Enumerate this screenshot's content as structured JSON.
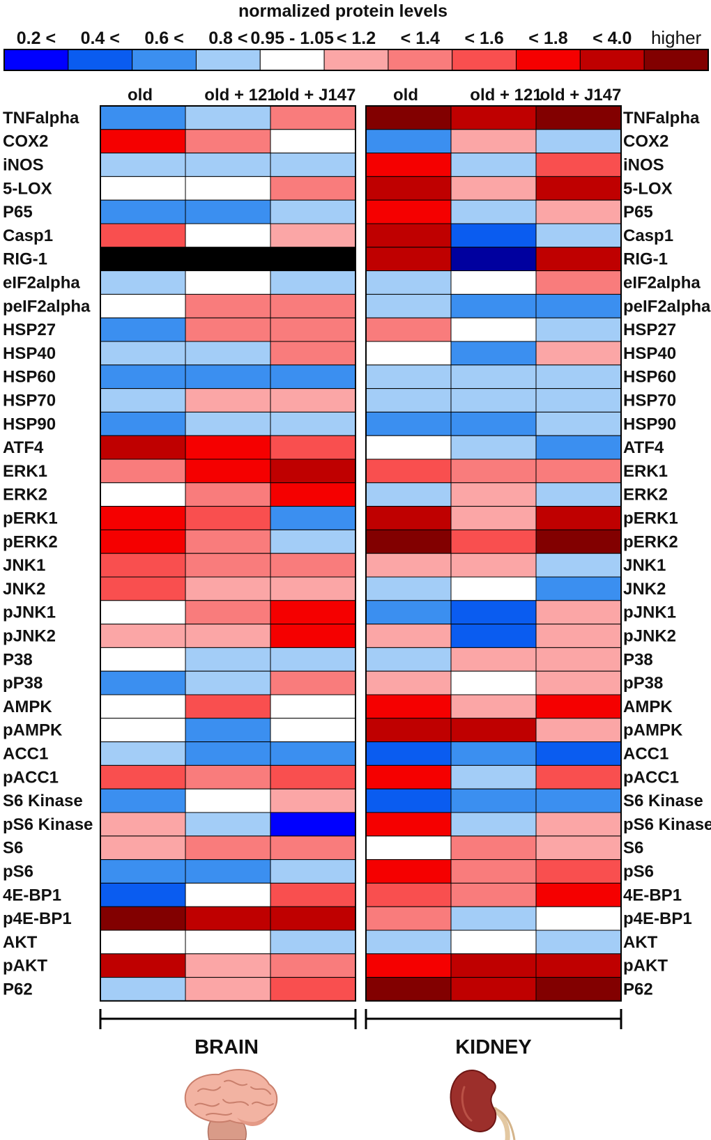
{
  "chart_data": {
    "type": "heatmap",
    "title": "normalized protein levels",
    "legend": {
      "labels": [
        "0.2 <",
        "0.4 <",
        "0.6 <",
        "0.8 <",
        "0.95 - 1.05",
        "< 1.2",
        "< 1.4",
        "< 1.6",
        "< 1.8",
        "< 4.0",
        "higher"
      ],
      "bins": [
        "b1",
        "b2",
        "b3",
        "b4",
        "w",
        "r1",
        "r2",
        "r3",
        "r4",
        "r5",
        "r6"
      ],
      "colors": {
        "b1": "#0000ff",
        "b2": "#0a5cf0",
        "b3": "#3b8ff0",
        "b4": "#a3cdf7",
        "w": "#ffffff",
        "r1": "#fba6a6",
        "r2": "#f97c7c",
        "r3": "#f94f4f",
        "r4": "#f50000",
        "r5": "#bf0000",
        "r6": "#820000",
        "na": "#000000",
        "blue_dark": "#00009f"
      }
    },
    "columns": [
      "old",
      "old + 121",
      "old + J147"
    ],
    "tissues": [
      "BRAIN",
      "KIDNEY"
    ],
    "proteins": [
      "TNFalpha",
      "COX2",
      "iNOS",
      "5-LOX",
      "P65",
      "Casp1",
      "RIG-1",
      "eIF2alpha",
      "peIF2alpha",
      "HSP27",
      "HSP40",
      "HSP60",
      "HSP70",
      "HSP90",
      "ATF4",
      "ERK1",
      "ERK2",
      "pERK1",
      "pERK2",
      "JNK1",
      "JNK2",
      "pJNK1",
      "pJNK2",
      "P38",
      "pP38",
      "AMPK",
      "pAMPK",
      "ACC1",
      "pACC1",
      "S6 Kinase",
      "pS6 Kinase",
      "S6",
      "pS6",
      "4E-BP1",
      "p4E-BP1",
      "AKT",
      "pAKT",
      "P62"
    ],
    "brain": [
      [
        "b3",
        "b4",
        "r2"
      ],
      [
        "r4",
        "r2",
        "w"
      ],
      [
        "b4",
        "b4",
        "b4"
      ],
      [
        "w",
        "w",
        "r2"
      ],
      [
        "b3",
        "b3",
        "b4"
      ],
      [
        "r3",
        "w",
        "r1"
      ],
      [
        "na",
        "na",
        "na"
      ],
      [
        "b4",
        "w",
        "b4"
      ],
      [
        "w",
        "r2",
        "r2"
      ],
      [
        "b3",
        "r2",
        "r2"
      ],
      [
        "b4",
        "b4",
        "r2"
      ],
      [
        "b3",
        "b3",
        "b3"
      ],
      [
        "b4",
        "r1",
        "r1"
      ],
      [
        "b3",
        "b4",
        "b4"
      ],
      [
        "r5",
        "r4",
        "r3"
      ],
      [
        "r2",
        "r4",
        "r5"
      ],
      [
        "w",
        "r2",
        "r4"
      ],
      [
        "r4",
        "r3",
        "b3"
      ],
      [
        "r4",
        "r2",
        "b4"
      ],
      [
        "r3",
        "r2",
        "r2"
      ],
      [
        "r3",
        "r1",
        "r1"
      ],
      [
        "w",
        "r2",
        "r4"
      ],
      [
        "r1",
        "r1",
        "r4"
      ],
      [
        "w",
        "b4",
        "b4"
      ],
      [
        "b3",
        "b4",
        "r2"
      ],
      [
        "w",
        "r3",
        "w"
      ],
      [
        "w",
        "b3",
        "w"
      ],
      [
        "b4",
        "b3",
        "b3"
      ],
      [
        "r3",
        "r2",
        "r3"
      ],
      [
        "b3",
        "w",
        "r1"
      ],
      [
        "r1",
        "b4",
        "b1"
      ],
      [
        "r1",
        "r2",
        "r2"
      ],
      [
        "b3",
        "b3",
        "b4"
      ],
      [
        "b2",
        "w",
        "r3"
      ],
      [
        "r6",
        "r5",
        "r5"
      ],
      [
        "w",
        "w",
        "b4"
      ],
      [
        "r5",
        "r1",
        "r2"
      ],
      [
        "b4",
        "r1",
        "r3"
      ]
    ],
    "kidney": [
      [
        "r6",
        "r5",
        "r6"
      ],
      [
        "b3",
        "r1",
        "b4"
      ],
      [
        "r4",
        "b4",
        "r3"
      ],
      [
        "r5",
        "r1",
        "r5"
      ],
      [
        "r4",
        "b4",
        "r1"
      ],
      [
        "r5",
        "b2",
        "b4"
      ],
      [
        "r5",
        "blue_dark",
        "r5"
      ],
      [
        "b4",
        "w",
        "r2"
      ],
      [
        "b4",
        "b3",
        "b3"
      ],
      [
        "r2",
        "w",
        "b4"
      ],
      [
        "w",
        "b3",
        "r1"
      ],
      [
        "b4",
        "b4",
        "b4"
      ],
      [
        "b4",
        "b4",
        "b4"
      ],
      [
        "b3",
        "b3",
        "b4"
      ],
      [
        "w",
        "b4",
        "b3"
      ],
      [
        "r3",
        "r2",
        "r2"
      ],
      [
        "b4",
        "r1",
        "b4"
      ],
      [
        "r5",
        "r1",
        "r5"
      ],
      [
        "r6",
        "r3",
        "r6"
      ],
      [
        "r1",
        "r1",
        "b4"
      ],
      [
        "b4",
        "w",
        "b3"
      ],
      [
        "b3",
        "b2",
        "r1"
      ],
      [
        "r1",
        "b2",
        "r1"
      ],
      [
        "b4",
        "r1",
        "r1"
      ],
      [
        "r1",
        "w",
        "r1"
      ],
      [
        "r4",
        "r1",
        "r4"
      ],
      [
        "r5",
        "r5",
        "r1"
      ],
      [
        "b2",
        "b3",
        "b2"
      ],
      [
        "r4",
        "b4",
        "r3"
      ],
      [
        "b2",
        "b3",
        "b3"
      ],
      [
        "r4",
        "b4",
        "r1"
      ],
      [
        "w",
        "r2",
        "r1"
      ],
      [
        "r4",
        "r2",
        "r3"
      ],
      [
        "r3",
        "r2",
        "r4"
      ],
      [
        "r2",
        "b4",
        "w"
      ],
      [
        "b4",
        "w",
        "b4"
      ],
      [
        "r4",
        "r5",
        "r5"
      ],
      [
        "r6",
        "r5",
        "r6"
      ]
    ]
  }
}
